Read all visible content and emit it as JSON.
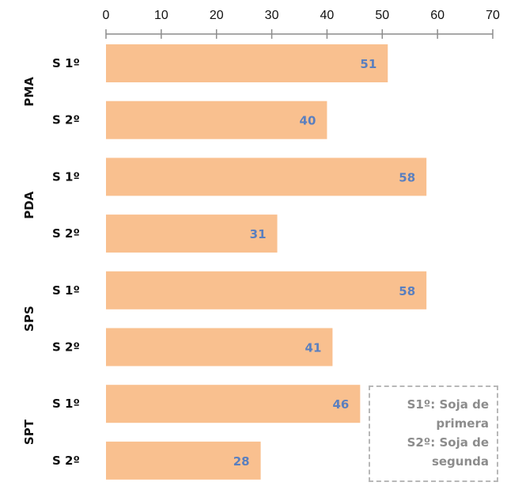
{
  "chart_data": {
    "type": "bar",
    "orientation": "horizontal",
    "xlim": [
      0,
      70
    ],
    "x_ticks": [
      0,
      10,
      20,
      30,
      40,
      50,
      60,
      70
    ],
    "grid": false,
    "groups": [
      {
        "name": "PMA",
        "rows": [
          {
            "label": "S 1º",
            "value": 51
          },
          {
            "label": "S 2º",
            "value": 40
          }
        ]
      },
      {
        "name": "PDA",
        "rows": [
          {
            "label": "S 1º",
            "value": 58
          },
          {
            "label": "S 2º",
            "value": 31
          }
        ]
      },
      {
        "name": "SPS",
        "rows": [
          {
            "label": "S 1º",
            "value": 58
          },
          {
            "label": "S 2º",
            "value": 41
          }
        ]
      },
      {
        "name": "SPT",
        "rows": [
          {
            "label": "S 1º",
            "value": 46
          },
          {
            "label": "S 2º",
            "value": 28
          }
        ]
      }
    ],
    "bar_color": "#f9c08f",
    "data_label_color": "#5a7fbf",
    "axis_color": "#8c8c8c"
  },
  "note": {
    "line1": "S1º: Soja de\nprimera",
    "line2": "S2º: Soja de\nsegunda"
  }
}
